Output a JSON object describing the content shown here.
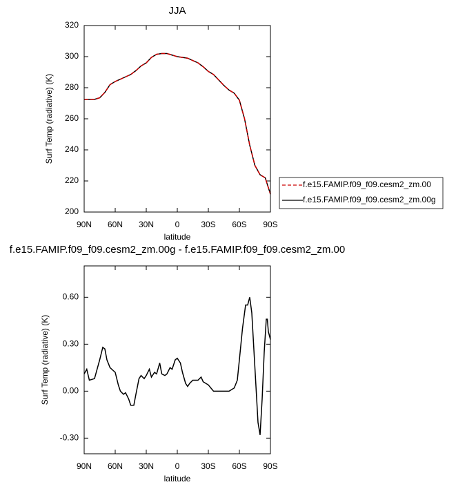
{
  "chart_data": [
    {
      "type": "line",
      "title": "JJA",
      "xlabel": "latitude",
      "ylabel": "Surf Temp (radiative) (K)",
      "x": [
        90,
        85,
        80,
        75,
        70,
        65,
        60,
        55,
        50,
        45,
        40,
        35,
        30,
        25,
        20,
        15,
        10,
        5,
        0,
        -5,
        -10,
        -15,
        -20,
        -25,
        -30,
        -35,
        -40,
        -45,
        -50,
        -55,
        -60,
        -65,
        -70,
        -75,
        -80,
        -85,
        -90
      ],
      "series": [
        {
          "name": "f.e15.FAMIP.f09_f09.cesm2_zm.00g",
          "color": "#000000",
          "dash": false,
          "values": [
            272.5,
            272.5,
            272.5,
            273.5,
            277,
            282,
            284,
            285.5,
            287,
            288.5,
            291,
            294,
            296,
            299.5,
            301.5,
            302,
            302,
            301,
            300,
            299.5,
            299,
            297.5,
            296,
            293.5,
            290.5,
            288.5,
            285,
            281.5,
            278.5,
            276.5,
            272,
            260,
            243,
            230,
            224,
            222,
            211.5
          ]
        },
        {
          "name": "f.e15.FAMIP.f09_f09.cesm2_zm.00",
          "color": "#cc0000",
          "dash": true,
          "values": [
            272.5,
            272.5,
            272.5,
            273.5,
            277,
            282,
            284,
            285.5,
            287,
            288.5,
            291,
            294,
            296,
            299.5,
            301.5,
            302,
            302,
            301,
            300,
            299.5,
            299,
            297.5,
            296,
            293.5,
            290.5,
            288.5,
            285,
            281.5,
            278.5,
            276.5,
            272,
            260,
            243,
            230,
            224,
            222,
            211.5
          ]
        }
      ],
      "xlim": [
        90,
        -90
      ],
      "xticks": [
        {
          "value": 90,
          "label": "90N"
        },
        {
          "value": 60,
          "label": "60N"
        },
        {
          "value": 30,
          "label": "30N"
        },
        0,
        {
          "value": -30,
          "label": "30S"
        },
        {
          "value": -60,
          "label": "60S"
        },
        {
          "value": -90,
          "label": "90S"
        }
      ],
      "ylim": [
        200,
        320
      ],
      "yticks": [
        200,
        220,
        240,
        260,
        280,
        300,
        320
      ],
      "legend": "right"
    },
    {
      "type": "line",
      "title": "f.e15.FAMIP.f09_f09.cesm2_zm.00g - f.e15.FAMIP.f09_f09.cesm2_zm.00",
      "xlabel": "latitude",
      "ylabel": "Surf Temp (radiative) (K)",
      "x": [
        90,
        87.5,
        85,
        80,
        75,
        72,
        70,
        68,
        65,
        60,
        57,
        55,
        52,
        50,
        47,
        45,
        42,
        40,
        37,
        35,
        32,
        30,
        27,
        25,
        22,
        20,
        17,
        15,
        12,
        10,
        7,
        5,
        2,
        0,
        -3,
        -5,
        -8,
        -10,
        -12,
        -15,
        -20,
        -23,
        -25,
        -30,
        -35,
        -40,
        -45,
        -50,
        -55,
        -58,
        -60,
        -63,
        -66,
        -68,
        -70,
        -72,
        -75,
        -78,
        -80,
        -82,
        -84,
        -86,
        -87,
        -88,
        -90
      ],
      "series": [
        {
          "color": "#000000",
          "dash": false,
          "values": [
            0.11,
            0.14,
            0.07,
            0.08,
            0.2,
            0.28,
            0.27,
            0.2,
            0.15,
            0.12,
            0.04,
            0.0,
            -0.02,
            -0.01,
            -0.05,
            -0.09,
            -0.09,
            -0.02,
            0.08,
            0.1,
            0.08,
            0.1,
            0.14,
            0.09,
            0.12,
            0.11,
            0.18,
            0.11,
            0.1,
            0.11,
            0.15,
            0.14,
            0.2,
            0.21,
            0.18,
            0.12,
            0.05,
            0.03,
            0.05,
            0.07,
            0.07,
            0.09,
            0.06,
            0.04,
            0.0,
            0.0,
            0.0,
            0.0,
            0.02,
            0.07,
            0.2,
            0.4,
            0.55,
            0.55,
            0.6,
            0.5,
            0.15,
            -0.2,
            -0.28,
            -0.05,
            0.25,
            0.46,
            0.46,
            0.38,
            0.33
          ]
        }
      ],
      "xlim": [
        90,
        -90
      ],
      "xticks": [
        {
          "value": 90,
          "label": "90N"
        },
        {
          "value": 60,
          "label": "60N"
        },
        {
          "value": 30,
          "label": "30N"
        },
        0,
        {
          "value": -30,
          "label": "30S"
        },
        {
          "value": -60,
          "label": "60S"
        },
        {
          "value": -90,
          "label": "90S"
        }
      ],
      "ylim": [
        -0.4,
        0.8
      ],
      "yticks": [
        {
          "value": -0.3,
          "label": "-0.30"
        },
        {
          "value": 0,
          "label": "0.00"
        },
        {
          "value": 0.3,
          "label": "0.30"
        },
        {
          "value": 0.6,
          "label": "0.60"
        }
      ]
    }
  ]
}
